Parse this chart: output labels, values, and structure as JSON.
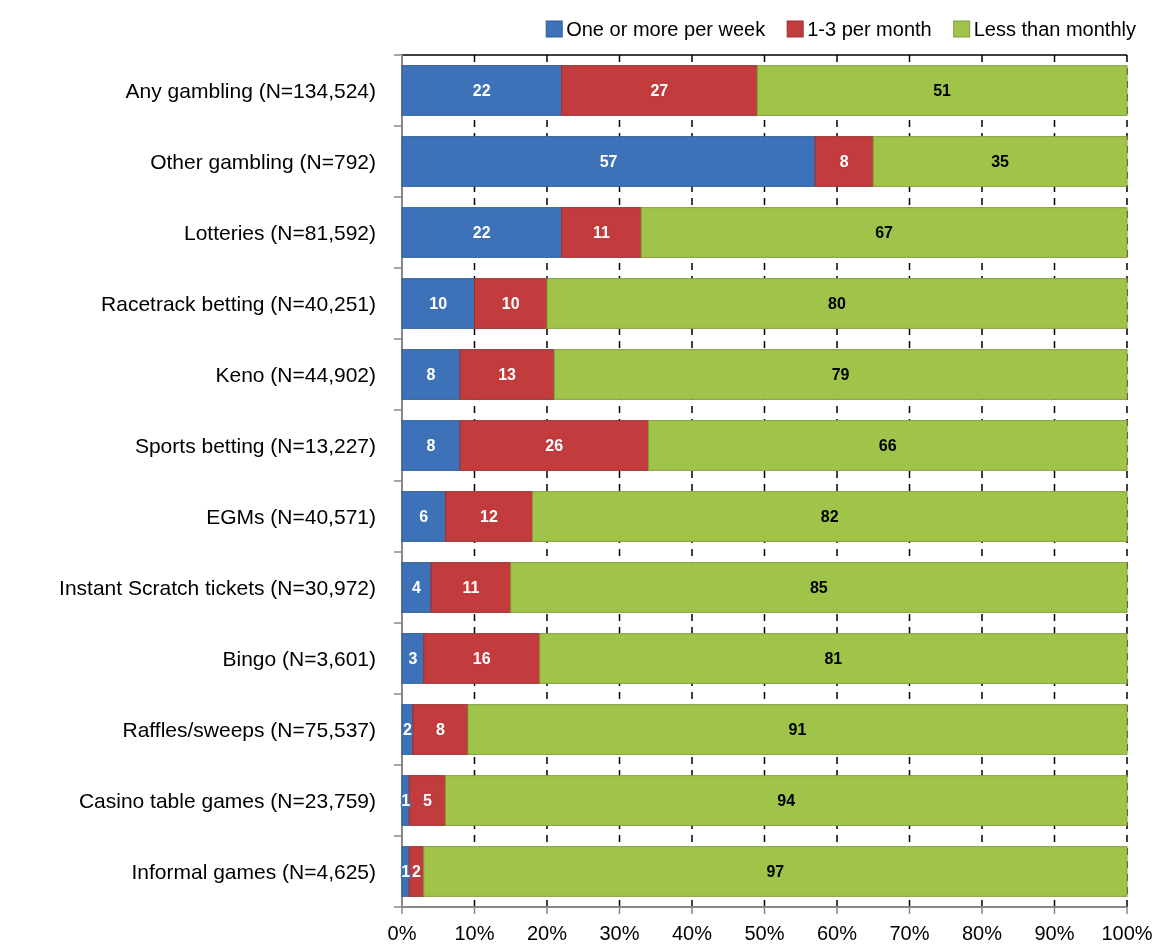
{
  "chart_data": {
    "type": "bar",
    "orientation": "horizontal",
    "stacked": true,
    "categories": [
      "Any gambling (N=134,524)",
      "Other gambling (N=792)",
      "Lotteries (N=81,592)",
      "Racetrack betting (N=40,251)",
      "Keno (N=44,902)",
      "Sports betting (N=13,227)",
      "EGMs (N=40,571)",
      "Instant Scratch tickets (N=30,972)",
      "Bingo (N=3,601)",
      "Raffles/sweeps (N=75,537)",
      "Casino table games (N=23,759)",
      "Informal games (N=4,625)"
    ],
    "series": [
      {
        "name": "One or more per week",
        "color": "#3d72b8",
        "values": [
          22,
          57,
          22,
          10,
          8,
          8,
          6,
          4,
          3,
          1.5,
          1,
          1
        ],
        "value_labels": [
          "22",
          "57",
          "22",
          "10",
          "8",
          "8",
          "6",
          "4",
          "3",
          "2",
          "1",
          "1"
        ]
      },
      {
        "name": "1-3 per month",
        "color": "#c23b3d",
        "values": [
          27,
          8,
          11,
          10,
          13,
          26,
          12,
          11,
          16,
          7.6,
          5,
          2
        ],
        "value_labels": [
          "27",
          "8",
          "11",
          "10",
          "13",
          "26",
          "12",
          "11",
          "16",
          "8",
          "5",
          "2"
        ]
      },
      {
        "name": "Less than monthly",
        "color": "#a0c44a",
        "values": [
          51,
          35,
          67,
          80,
          79,
          66,
          82,
          85,
          81,
          90.9,
          94,
          97
        ],
        "value_labels": [
          "51",
          "35",
          "67",
          "80",
          "79",
          "66",
          "82",
          "85",
          "81",
          "91",
          "94",
          "97"
        ]
      }
    ],
    "xlim": [
      0,
      100
    ],
    "xticks": [
      {
        "value": 0,
        "label": "0%"
      },
      {
        "value": 10,
        "label": "10%"
      },
      {
        "value": 20,
        "label": "20%"
      },
      {
        "value": 30,
        "label": "30%"
      },
      {
        "value": 40,
        "label": "40%"
      },
      {
        "value": 50,
        "label": "50%"
      },
      {
        "value": 60,
        "label": "60%"
      },
      {
        "value": 70,
        "label": "70%"
      },
      {
        "value": 80,
        "label": "80%"
      },
      {
        "value": 90,
        "label": "90%"
      },
      {
        "value": 100,
        "label": "100%"
      }
    ],
    "grid": "x",
    "legend": "top right"
  }
}
